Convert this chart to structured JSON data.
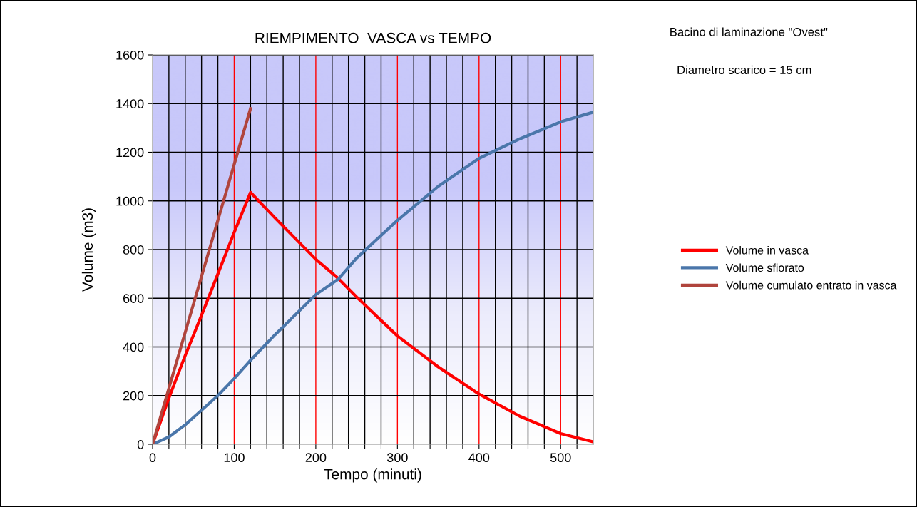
{
  "chart_data": {
    "type": "line",
    "title": "RIEMPIMENTO  VASCA vs TEMPO",
    "xlabel": "Tempo (minuti)",
    "ylabel": "Volume (m3)",
    "annotations": [
      "Bacino di laminazione \"Ovest\"",
      "Diametro scarico = 15 cm"
    ],
    "series": [
      {
        "name": "Volume in vasca",
        "color": "#ff0000",
        "x": [
          0,
          20,
          40,
          60,
          80,
          100,
          120,
          150,
          200,
          228,
          250,
          300,
          350,
          400,
          450,
          500,
          540
        ],
        "values": [
          0,
          190,
          365,
          530,
          700,
          870,
          1035,
          930,
          760,
          680,
          605,
          445,
          318,
          206,
          115,
          44,
          10
        ]
      },
      {
        "name": "Volume sfiorato",
        "color": "#4a76aa",
        "x": [
          0,
          20,
          40,
          60,
          80,
          100,
          120,
          150,
          200,
          228,
          250,
          300,
          350,
          400,
          450,
          500,
          540
        ],
        "values": [
          0,
          30,
          80,
          140,
          200,
          270,
          345,
          450,
          615,
          680,
          765,
          920,
          1060,
          1175,
          1255,
          1325,
          1365
        ]
      },
      {
        "name": "Volume cumulato entrato in vasca",
        "color": "#b0443c",
        "x": [
          0,
          20,
          40,
          60,
          80,
          100,
          120
        ],
        "values": [
          0,
          230,
          460,
          690,
          920,
          1150,
          1380
        ]
      }
    ],
    "xlim": [
      0,
      540
    ],
    "ylim": [
      0,
      1600
    ],
    "xticks": [
      0,
      {
        "value": 20,
        "label": null
      },
      {
        "value": 40,
        "label": null
      },
      {
        "value": 60,
        "label": null
      },
      {
        "value": 80,
        "label": null
      },
      100,
      {
        "value": 120,
        "label": null
      },
      {
        "value": 140,
        "label": null
      },
      {
        "value": 160,
        "label": null
      },
      {
        "value": 180,
        "label": null
      },
      200,
      {
        "value": 220,
        "label": null
      },
      {
        "value": 240,
        "label": null
      },
      {
        "value": 260,
        "label": null
      },
      {
        "value": 280,
        "label": null
      },
      300,
      {
        "value": 320,
        "label": null
      },
      {
        "value": 340,
        "label": null
      },
      {
        "value": 360,
        "label": null
      },
      {
        "value": 380,
        "label": null
      },
      400,
      {
        "value": 420,
        "label": null
      },
      {
        "value": 440,
        "label": null
      },
      {
        "value": 460,
        "label": null
      },
      {
        "value": 480,
        "label": null
      },
      500,
      {
        "value": 520,
        "label": null
      }
    ],
    "yticks": [
      0,
      200,
      400,
      600,
      800,
      1000,
      1200,
      1400,
      1600
    ],
    "grid": true,
    "legend": "right",
    "marker": "none",
    "line_style": "solid"
  }
}
